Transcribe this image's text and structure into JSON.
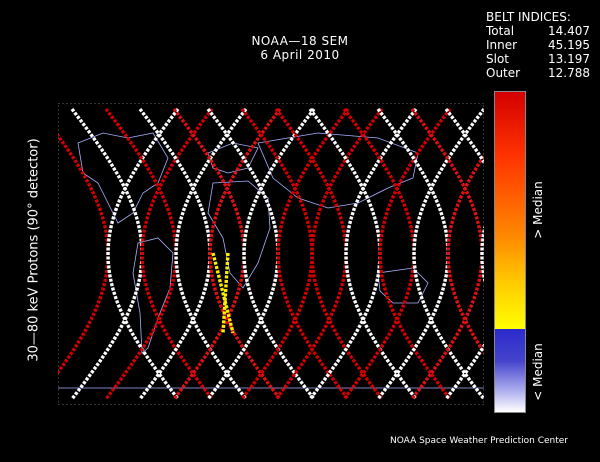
{
  "title": {
    "line1": "NOAA—18 SEM",
    "line2": "6 April 2010"
  },
  "belt_indices": {
    "heading": "BELT INDICES:",
    "rows": [
      {
        "label": "Total",
        "value": "14.407"
      },
      {
        "label": "Inner",
        "value": "45.195"
      },
      {
        "label": "Slot",
        "value": "13.197"
      },
      {
        "label": "Outer",
        "value": "12.788"
      }
    ]
  },
  "y_axis_label": "30—80 keV Protons (90° detector)",
  "scale": {
    "upper_label": "> Median",
    "lower_label": "< Median"
  },
  "credit": "NOAA Space Weather Prediction Center",
  "colors": {
    "high": "#d40000",
    "mid": "#ffcc00",
    "low": "#3333cc",
    "background": "#000000"
  }
}
